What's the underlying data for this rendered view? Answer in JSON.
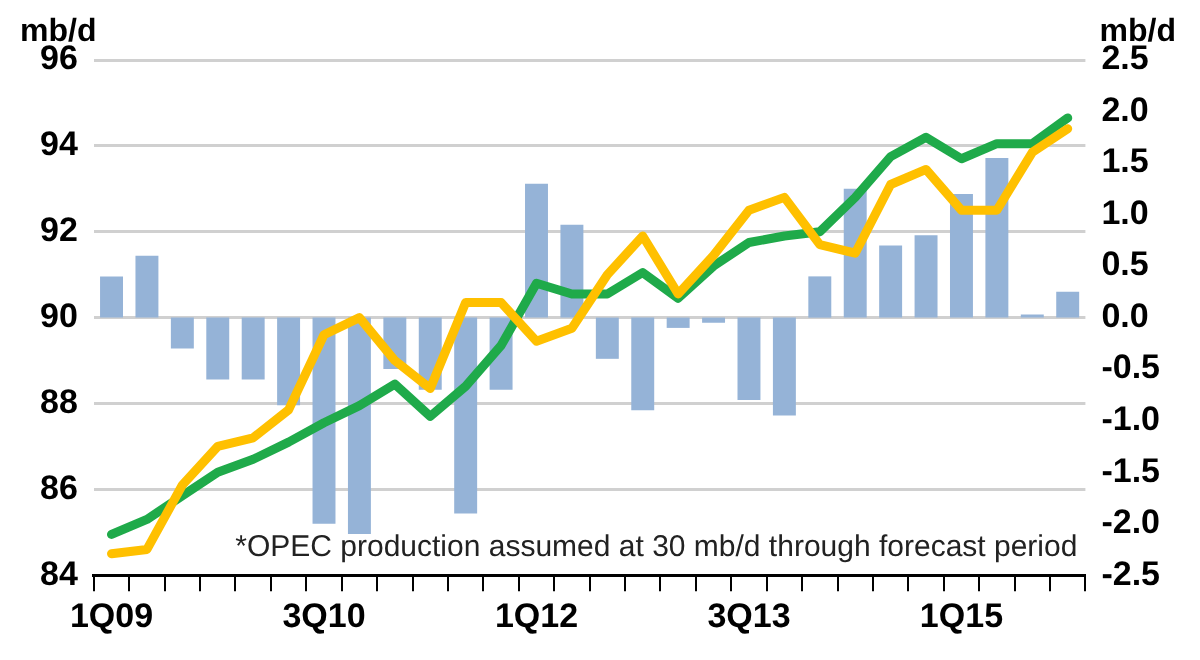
{
  "chart_data": {
    "type": "bar",
    "ylabel": "mb/d",
    "y2label": "mb/d",
    "categories": [
      "1Q09",
      null,
      null,
      null,
      null,
      null,
      "3Q10",
      null,
      null,
      null,
      null,
      null,
      "1Q12",
      null,
      null,
      null,
      null,
      null,
      "3Q13",
      null,
      null,
      null,
      null,
      null,
      "1Q15",
      null,
      null,
      null
    ],
    "series": [
      {
        "axis": "y2",
        "color": "#95b3d7",
        "values": [
          0.4,
          0.6,
          -0.3,
          -0.6,
          -0.6,
          -0.85,
          -2.0,
          -2.1,
          -0.5,
          -0.7,
          -1.9,
          -0.7,
          1.3,
          0.9,
          -0.4,
          -0.9,
          -0.1,
          -0.05,
          -0.8,
          -0.95,
          0.4,
          1.25,
          0.7,
          0.8,
          1.2,
          1.55,
          0.03,
          0.25
        ]
      },
      {
        "type": "line",
        "axis": "y",
        "color": "#ffc000",
        "values": [
          84.5,
          84.6,
          86.1,
          87.0,
          87.2,
          87.85,
          89.6,
          90.0,
          89.0,
          88.35,
          90.35,
          90.35,
          89.45,
          89.75,
          91.0,
          91.9,
          90.55,
          91.45,
          92.5,
          92.8,
          91.7,
          91.5,
          93.1,
          93.45,
          92.5,
          92.5,
          93.85,
          94.4
        ]
      },
      {
        "type": "line",
        "axis": "y",
        "color": "#1faa4a",
        "values": [
          84.95,
          85.3,
          85.85,
          86.4,
          86.7,
          87.1,
          87.55,
          87.95,
          88.45,
          87.7,
          88.4,
          89.35,
          90.8,
          90.55,
          90.55,
          91.05,
          90.45,
          91.2,
          91.75,
          91.9,
          92.0,
          92.8,
          93.75,
          94.2,
          93.7,
          94.05,
          94.05,
          94.65
        ]
      }
    ],
    "ylim": [
      84,
      96
    ],
    "yticks": [
      84,
      86,
      88,
      90,
      92,
      94,
      96
    ],
    "y2lim": [
      -2.5,
      2.5
    ],
    "y2ticks": [
      {
        "value": -2.5,
        "label": "-2.5"
      },
      {
        "value": -2,
        "label": "-2.0"
      },
      {
        "value": -1.5,
        "label": "-1.5"
      },
      {
        "value": -1,
        "label": "-1.0"
      },
      {
        "value": -0.5,
        "label": "-0.5"
      },
      {
        "value": 0,
        "label": "0.0"
      },
      {
        "value": 0.5,
        "label": "0.5"
      },
      {
        "value": 1,
        "label": "1.0"
      },
      {
        "value": 1.5,
        "label": "1.5"
      },
      {
        "value": 2,
        "label": "2.0"
      },
      {
        "value": 2.5,
        "label": "2.5"
      }
    ],
    "grid": "y",
    "legend": false,
    "marker": "none",
    "line_style": "solid",
    "annotations": [
      "*OPEC production assumed at 30 mb/d through forecast period"
    ]
  }
}
